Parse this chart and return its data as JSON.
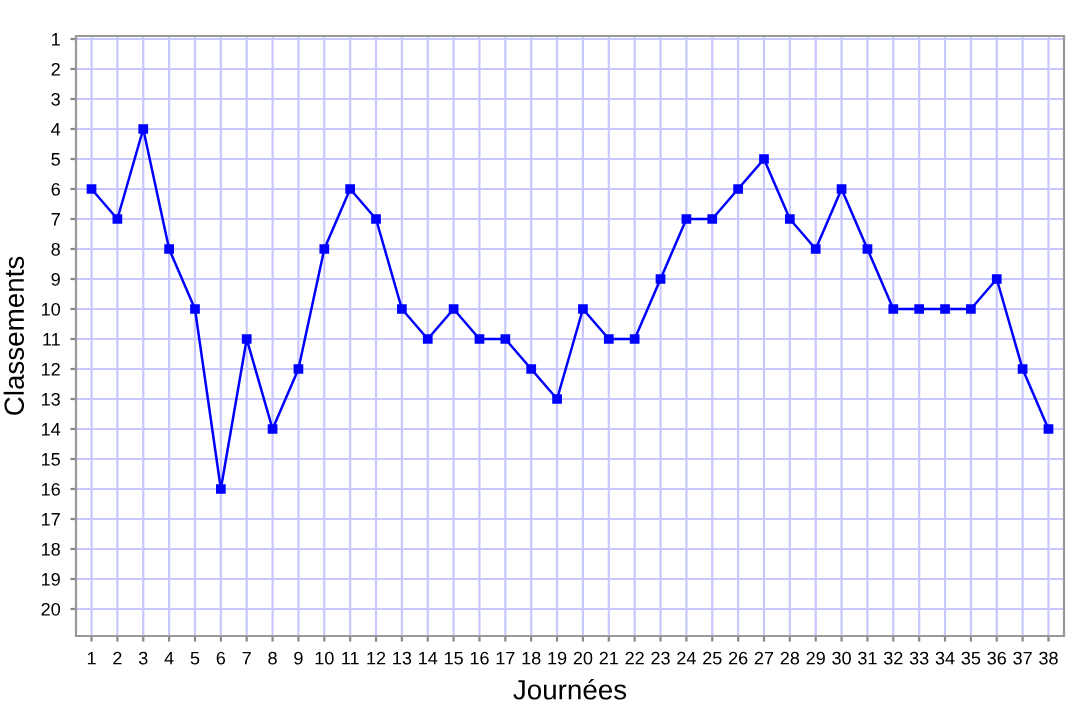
{
  "chart_data": {
    "type": "line",
    "xlabel": "Journées",
    "ylabel": "Classements",
    "x": [
      1,
      2,
      3,
      4,
      5,
      6,
      7,
      8,
      9,
      10,
      11,
      12,
      13,
      14,
      15,
      16,
      17,
      18,
      19,
      20,
      21,
      22,
      23,
      24,
      25,
      26,
      27,
      28,
      29,
      30,
      31,
      32,
      33,
      34,
      35,
      36,
      37,
      38
    ],
    "series": [
      {
        "color": "#0000ff",
        "values": [
          6,
          7,
          4,
          8,
          10,
          16,
          11,
          14,
          12,
          8,
          6,
          7,
          10,
          11,
          10,
          11,
          11,
          12,
          13,
          10,
          11,
          11,
          9,
          7,
          7,
          6,
          5,
          7,
          8,
          6,
          8,
          10,
          10,
          10,
          10,
          9,
          12,
          14
        ]
      }
    ],
    "xlim": [
      0.4,
      38.6
    ],
    "xticks": [
      1,
      2,
      3,
      4,
      5,
      6,
      7,
      8,
      9,
      10,
      11,
      12,
      13,
      14,
      15,
      16,
      17,
      18,
      19,
      20,
      21,
      22,
      23,
      24,
      25,
      26,
      27,
      28,
      29,
      30,
      31,
      32,
      33,
      34,
      35,
      36,
      37,
      38
    ],
    "ylim": [
      20.9,
      0.9
    ],
    "yticks": [
      1,
      2,
      3,
      4,
      5,
      6,
      7,
      8,
      9,
      10,
      11,
      12,
      13,
      14,
      15,
      16,
      17,
      18,
      19,
      20
    ],
    "grid": true,
    "marker": "square",
    "line_style": "solid",
    "legend": false
  }
}
